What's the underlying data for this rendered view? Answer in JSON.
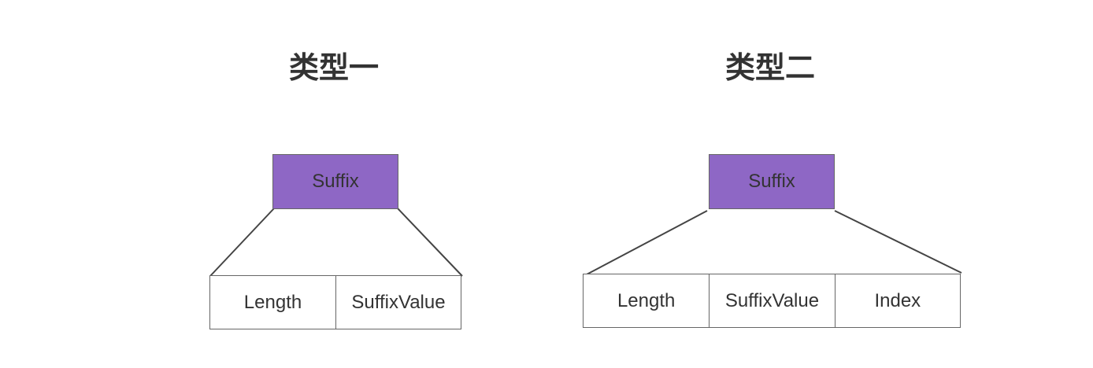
{
  "diagrams": [
    {
      "title": "类型一",
      "parent": "Suffix",
      "fields": [
        "Length",
        "SuffixValue"
      ]
    },
    {
      "title": "类型二",
      "parent": "Suffix",
      "fields": [
        "Length",
        "SuffixValue",
        "Index"
      ]
    }
  ],
  "colors": {
    "parent_fill": "#8e67c5",
    "border": "#666666",
    "text": "#333333"
  }
}
